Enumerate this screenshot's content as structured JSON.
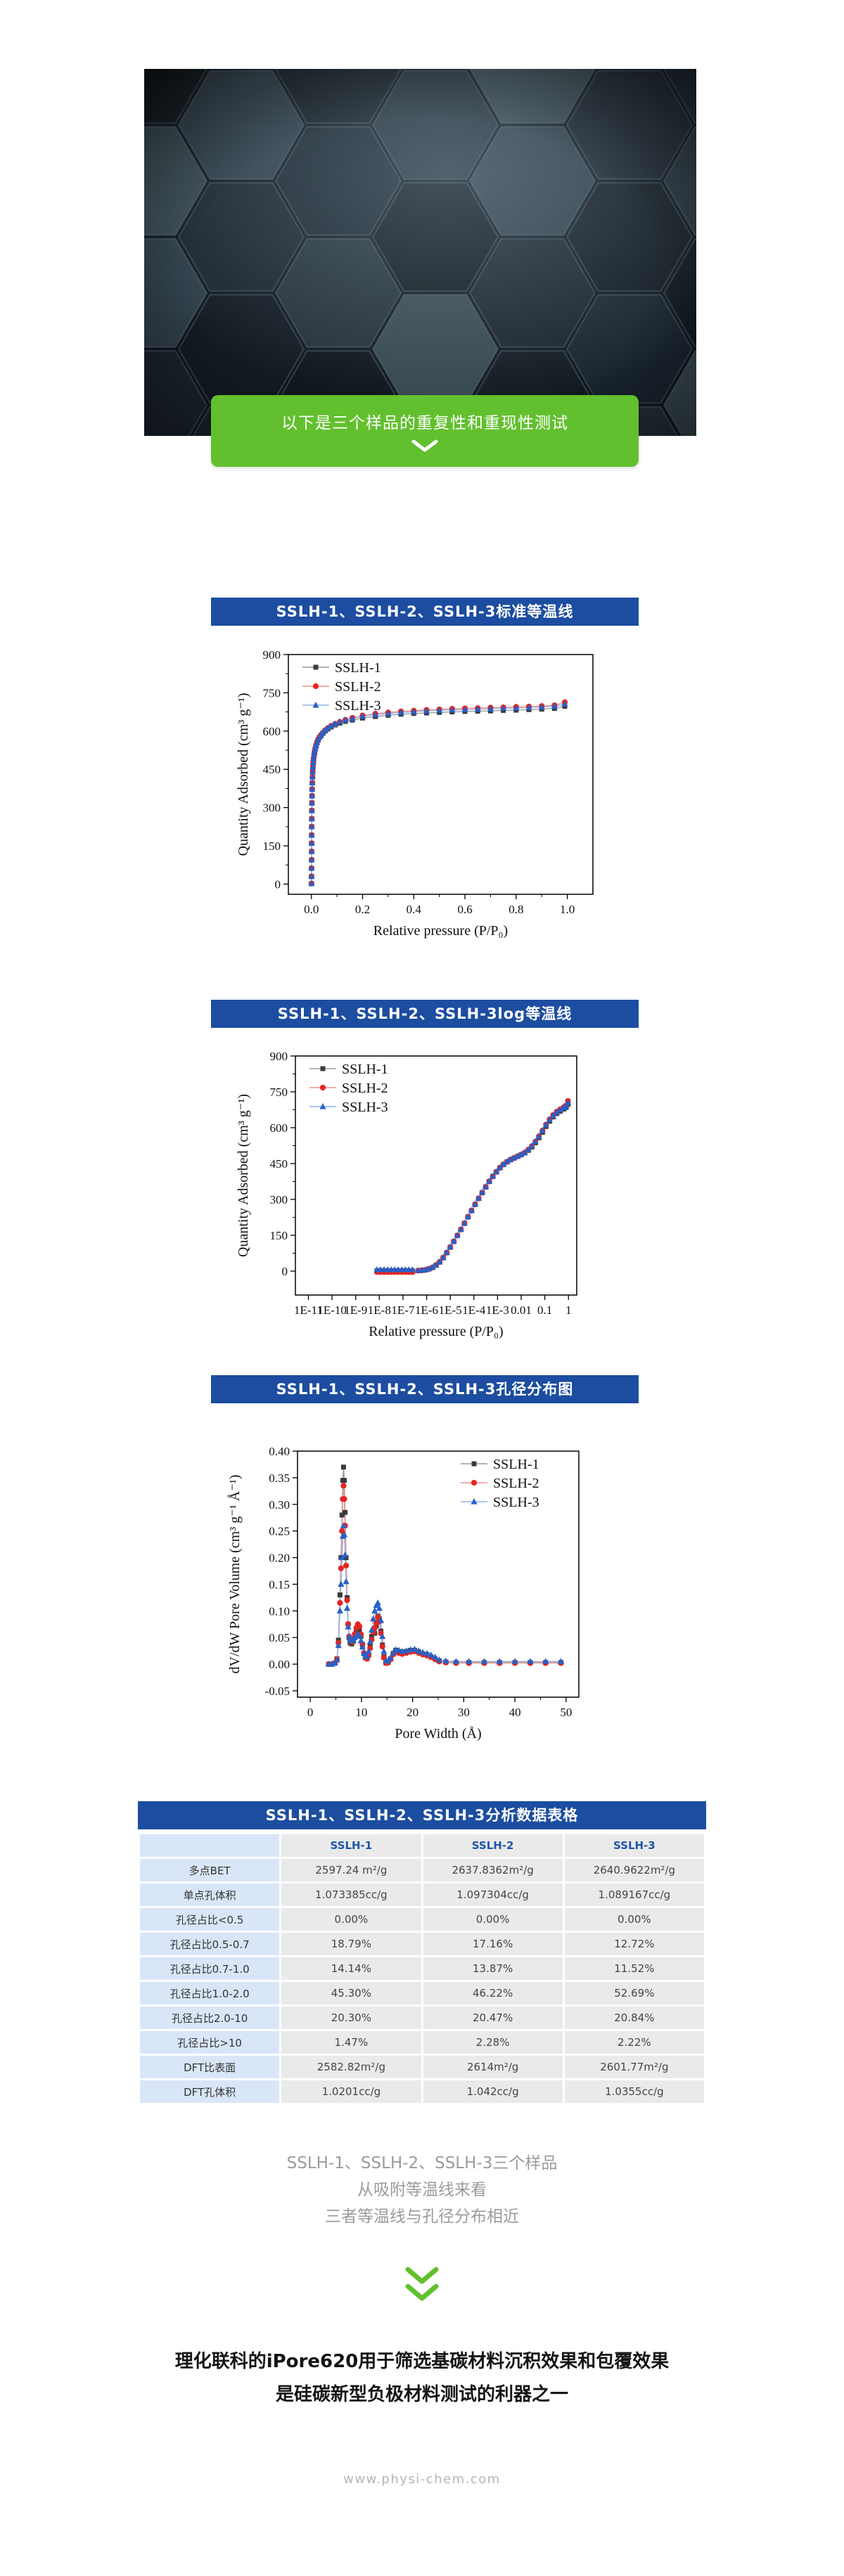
{
  "colors": {
    "accent_green": "#62c02e",
    "header_blue": "#1c4da0",
    "table_label_bg": "#d9e6f7",
    "table_cell_bg": "#eaeaea",
    "table_header_text": "#1d55a8"
  },
  "hero": {
    "palette": [
      "#0f161c",
      "#1a232c",
      "#243039",
      "#2e3d48",
      "#19242e",
      "#37474f",
      "#121a21"
    ],
    "highlight": "#9fb6c4"
  },
  "banner": {
    "title": "以下是三个样品的重复性和重现性测试"
  },
  "sections": [
    {
      "title": "SSLH-1、SSLH-2、SSLH-3标准等温线"
    },
    {
      "title": "SSLH-1、SSLH-2、SSLH-3log等温线"
    },
    {
      "title": "SSLH-1、SSLH-2、SSLH-3孔径分布图"
    },
    {
      "title": "SSLH-1、SSLH-2、SSLH-3分析数据表格"
    }
  ],
  "table": {
    "header": [
      "",
      "SSLH-1",
      "SSLH-2",
      "SSLH-3"
    ],
    "rows": [
      [
        "多点BET",
        "2597.24 m²/g",
        "2637.8362m²/g",
        "2640.9622m²/g"
      ],
      [
        "单点孔体积",
        "1.073385cc/g",
        "1.097304cc/g",
        "1.089167cc/g"
      ],
      [
        "孔径占比<0.5",
        "0.00%",
        "0.00%",
        "0.00%"
      ],
      [
        "孔径占比0.5-0.7",
        "18.79%",
        "17.16%",
        "12.72%"
      ],
      [
        "孔径占比0.7-1.0",
        "14.14%",
        "13.87%",
        "11.52%"
      ],
      [
        "孔径占比1.0-2.0",
        "45.30%",
        "46.22%",
        "52.69%"
      ],
      [
        "孔径占比2.0-10",
        "20.30%",
        "20.47%",
        "20.84%"
      ],
      [
        "孔径占比>10",
        "1.47%",
        "2.28%",
        "2.22%"
      ],
      [
        "DFT比表面",
        "2582.82m²/g",
        "2614m²/g",
        "2601.77m²/g"
      ],
      [
        "DFT孔体积",
        "1.0201cc/g",
        "1.042cc/g",
        "1.0355cc/g"
      ]
    ]
  },
  "summary": {
    "lines": [
      "SSLH-1、SSLH-2、SSLH-3三个样品",
      "从吸附等温线来看",
      "三者等温线与孔径分布相近"
    ]
  },
  "conclusion": {
    "lines": [
      "理化联科的iPore620用于筛选基碳材料沉积效果和包覆效果",
      "是硅碳新型负极材料测试的利器之一"
    ]
  },
  "footer": {
    "url": "www.physi-chem.com"
  },
  "chart_data": [
    {
      "type": "scatter",
      "title": "SSLH-1、SSLH-2、SSLH-3标准等温线",
      "xlabel": "Relative pressure (P/P₀)",
      "ylabel": "Quantity Adsorbed (cm³ g⁻¹)",
      "xscale": "linear",
      "xlim": [
        -0.09,
        1.1
      ],
      "ylim": [
        -40,
        900
      ],
      "grid": false,
      "legend_position": "top-left",
      "xticks": {
        "values": [
          0,
          0.2,
          0.4,
          0.6,
          0.8,
          1
        ],
        "labels": [
          "0.0",
          "0.2",
          "0.4",
          "0.6",
          "0.8",
          "1.0"
        ],
        "minor": [
          0.1,
          0.3,
          0.5,
          0.7,
          0.9
        ]
      },
      "yticks": {
        "values": [
          0,
          150,
          300,
          450,
          600,
          750,
          900
        ],
        "labels": [
          "0",
          "150",
          "300",
          "450",
          "600",
          "750",
          "900"
        ],
        "minor": [
          75,
          225,
          375,
          525,
          675,
          825
        ]
      },
      "x": [
        0.0004,
        0.0005,
        0.0006,
        0.0007,
        0.0008,
        0.0009,
        0.001,
        0.0012,
        0.0014,
        0.0017,
        0.002,
        0.0024,
        0.0029,
        0.0035,
        0.0042,
        0.005,
        0.006,
        0.0072,
        0.0086,
        0.0103,
        0.0124,
        0.0149,
        0.0179,
        0.0215,
        0.0258,
        0.031,
        0.0372,
        0.0446,
        0.0535,
        0.0642,
        0.077,
        0.0924,
        0.111,
        0.133,
        0.16,
        0.2,
        0.25,
        0.3,
        0.35,
        0.4,
        0.45,
        0.5,
        0.55,
        0.6,
        0.65,
        0.7,
        0.75,
        0.8,
        0.85,
        0.9,
        0.95,
        0.99
      ],
      "series": [
        {
          "name": "SSLH-1",
          "marker": "square",
          "marker_color": "#3a3a3a",
          "line_color": "#999999",
          "y": [
            2,
            30,
            62,
            95,
            128,
            160,
            192,
            225,
            256,
            288,
            318,
            346,
            372,
            397,
            420,
            441,
            460,
            477,
            492,
            506,
            519,
            531,
            543,
            554,
            565,
            575,
            582,
            591,
            600,
            608,
            616,
            624,
            631,
            638,
            643,
            651,
            657,
            662,
            666,
            669,
            671,
            673,
            675,
            677,
            678,
            679,
            681,
            682,
            684,
            686,
            689,
            697
          ]
        },
        {
          "name": "SSLH-2",
          "marker": "circle",
          "marker_color": "#e62420",
          "line_color": "#f0928d",
          "y": [
            2,
            30,
            62,
            95,
            128,
            160,
            192,
            225,
            256,
            288,
            318,
            346,
            372,
            397,
            420,
            441,
            460,
            477,
            492,
            506,
            519,
            531,
            543,
            554,
            565,
            575,
            585,
            594,
            603,
            612,
            620,
            628,
            636,
            644,
            652,
            661,
            668,
            673,
            677,
            680,
            683,
            685,
            687,
            689,
            690,
            692,
            693,
            695,
            696,
            698,
            701,
            713
          ]
        },
        {
          "name": "SSLH-3",
          "marker": "triangle",
          "marker_color": "#2760c8",
          "line_color": "#8fb2e8",
          "y": [
            2,
            30,
            62,
            95,
            128,
            160,
            192,
            225,
            256,
            288,
            318,
            346,
            372,
            397,
            420,
            441,
            460,
            477,
            492,
            506,
            519,
            531,
            543,
            554,
            565,
            575,
            585,
            594,
            603,
            612,
            620,
            628,
            636,
            644,
            649,
            658,
            664,
            669,
            673,
            676,
            679,
            681,
            683,
            684,
            686,
            687,
            689,
            690,
            692,
            694,
            697,
            706
          ]
        }
      ]
    },
    {
      "type": "scatter",
      "title": "SSLH-1、SSLH-2、SSLH-3log等温线",
      "xlabel": "Relative pressure (P/P₀)",
      "ylabel": "Quantity Adsorbed (cm³ g⁻¹)",
      "xscale": "log10",
      "xlim": [
        -11.55,
        0.35
      ],
      "ylim": [
        -100,
        900
      ],
      "grid": false,
      "legend_position": "top-left",
      "xticks": {
        "values": [
          -11,
          -10,
          -9,
          -8,
          -7,
          -6,
          -5,
          -4,
          -3,
          -2,
          -1,
          0
        ],
        "labels": [
          "1E-11",
          "1E-10",
          "1E-9",
          "1E-8",
          "1E-7",
          "1E-6",
          "1E-5",
          "1E-4",
          "1E-3",
          "0.01",
          "0.1",
          "1"
        ],
        "minor": []
      },
      "yticks": {
        "values": [
          0,
          150,
          300,
          450,
          600,
          750,
          900
        ],
        "labels": [
          "0",
          "150",
          "300",
          "450",
          "600",
          "750",
          "900"
        ],
        "minor": [
          75,
          225,
          375,
          525,
          675,
          825
        ]
      },
      "x": [
        -8.1,
        -7.95,
        -7.8,
        -7.65,
        -7.5,
        -7.35,
        -7.2,
        -7.05,
        -6.9,
        -6.75,
        -6.6,
        -6.35,
        -6.2,
        -6.05,
        -5.9,
        -5.75,
        -5.6,
        -5.45,
        -5.3,
        -5.15,
        -5.0,
        -4.85,
        -4.7,
        -4.55,
        -4.4,
        -4.25,
        -4.1,
        -3.95,
        -3.8,
        -3.65,
        -3.5,
        -3.35,
        -3.2,
        -3.05,
        -2.9,
        -2.75,
        -2.6,
        -2.45,
        -2.3,
        -2.15,
        -2.0,
        -1.85,
        -1.7,
        -1.55,
        -1.4,
        -1.25,
        -1.1,
        -0.95,
        -0.8,
        -0.65,
        -0.5,
        -0.35,
        -0.2,
        -0.1,
        -0.02
      ],
      "series": [
        {
          "name": "SSLH-1",
          "marker": "square",
          "marker_color": "#3a3a3a",
          "line_color": "#999999",
          "y": [
            1,
            1,
            1,
            1,
            1,
            1,
            1,
            1,
            1,
            1,
            1,
            2,
            3,
            5,
            9,
            15,
            25,
            38,
            56,
            77,
            100,
            124,
            149,
            174,
            200,
            227,
            253,
            279,
            304,
            328,
            352,
            375,
            396,
            415,
            432,
            446,
            457,
            466,
            473,
            480,
            487,
            494,
            505,
            519,
            537,
            558,
            581,
            605,
            627,
            645,
            659,
            669,
            678,
            685,
            697
          ]
        },
        {
          "name": "SSLH-2",
          "marker": "circle",
          "marker_color": "#e62420",
          "line_color": "#f0928d",
          "y": [
            -4,
            -4,
            -4,
            -4,
            -4,
            -4,
            -4,
            -4,
            -4,
            -4,
            -4,
            2,
            3,
            5,
            9,
            15,
            25,
            38,
            56,
            77,
            100,
            124,
            149,
            174,
            200,
            227,
            253,
            279,
            304,
            328,
            352,
            375,
            396,
            415,
            432,
            446,
            457,
            466,
            473,
            480,
            487,
            496,
            508,
            523,
            542,
            564,
            588,
            613,
            635,
            653,
            667,
            677,
            686,
            693,
            712
          ]
        },
        {
          "name": "SSLH-3",
          "marker": "triangle",
          "marker_color": "#2760c8",
          "line_color": "#8fb2e8",
          "y": [
            6,
            6,
            6,
            6,
            6,
            6,
            6,
            6,
            6,
            6,
            6,
            3,
            4,
            6,
            10,
            16,
            26,
            39,
            57,
            78,
            101,
            125,
            150,
            175,
            201,
            228,
            254,
            280,
            305,
            329,
            353,
            376,
            397,
            416,
            433,
            447,
            458,
            467,
            474,
            481,
            488,
            496,
            508,
            523,
            542,
            564,
            588,
            612,
            633,
            650,
            664,
            674,
            683,
            690,
            705
          ]
        }
      ]
    },
    {
      "type": "scatter",
      "title": "SSLH-1、SSLH-2、SSLH-3孔径分布图",
      "xlabel": "Pore Width (Å)",
      "ylabel": "dV/dW Pore Volume (cm³ g⁻¹ Å⁻¹)",
      "xscale": "linear",
      "xlim": [
        -2.5,
        52.5
      ],
      "ylim": [
        -0.062,
        0.4
      ],
      "grid": false,
      "legend_position": "top-right",
      "xticks": {
        "values": [
          0,
          10,
          20,
          30,
          40,
          50
        ],
        "labels": [
          "0",
          "10",
          "20",
          "30",
          "40",
          "50"
        ],
        "minor": [
          5,
          15,
          25,
          35,
          45
        ]
      },
      "yticks": {
        "values": [
          -0.05,
          0,
          0.05,
          0.1,
          0.15,
          0.2,
          0.25,
          0.3,
          0.35,
          0.4
        ],
        "labels": [
          "-0.05",
          "0.00",
          "0.05",
          "0.10",
          "0.15",
          "0.20",
          "0.25",
          "0.30",
          "0.35",
          "0.40"
        ],
        "minor": []
      },
      "x": [
        3.6,
        4.2,
        4.8,
        5.2,
        5.5,
        5.8,
        6.0,
        6.2,
        6.35,
        6.5,
        6.65,
        6.8,
        7.0,
        7.2,
        7.4,
        7.6,
        7.8,
        8.1,
        8.4,
        8.7,
        9.0,
        9.3,
        9.6,
        9.9,
        10.2,
        10.5,
        10.8,
        11.1,
        11.4,
        11.7,
        12.0,
        12.3,
        12.6,
        12.9,
        13.2,
        13.5,
        13.8,
        14.1,
        14.4,
        14.8,
        15.2,
        15.7,
        16.2,
        16.7,
        17.3,
        18.0,
        18.8,
        19.6,
        20.4,
        21.2,
        22.0,
        22.8,
        23.6,
        24.4,
        25.2,
        26.5,
        28.5,
        31,
        34,
        37,
        40,
        43,
        46,
        49
      ],
      "series": [
        {
          "name": "SSLH-1",
          "marker": "square",
          "marker_color": "#3a3a3a",
          "line_color": "#999999",
          "y": [
            0,
            0,
            0.002,
            0.01,
            0.045,
            0.13,
            0.2,
            0.28,
            0.345,
            0.37,
            0.345,
            0.285,
            0.2,
            0.125,
            0.075,
            0.05,
            0.04,
            0.038,
            0.043,
            0.052,
            0.062,
            0.068,
            0.065,
            0.052,
            0.036,
            0.02,
            0.012,
            0.011,
            0.018,
            0.034,
            0.052,
            0.06,
            0.058,
            0.072,
            0.09,
            0.085,
            0.062,
            0.036,
            0.014,
            0.002,
            0.003,
            0.01,
            0.02,
            0.026,
            0.024,
            0.022,
            0.024,
            0.026,
            0.026,
            0.023,
            0.019,
            0.018,
            0.014,
            0.01,
            0.006,
            0.004,
            0.003,
            0.003,
            0.003,
            0.003,
            0.003,
            0.003,
            0.003,
            0.003
          ]
        },
        {
          "name": "SSLH-2",
          "marker": "circle",
          "marker_color": "#e62420",
          "line_color": "#f0928d",
          "y": [
            0,
            0,
            0.002,
            0.009,
            0.04,
            0.115,
            0.18,
            0.25,
            0.31,
            0.335,
            0.31,
            0.26,
            0.185,
            0.12,
            0.075,
            0.052,
            0.044,
            0.042,
            0.047,
            0.057,
            0.068,
            0.075,
            0.071,
            0.056,
            0.038,
            0.021,
            0.012,
            0.01,
            0.016,
            0.03,
            0.046,
            0.06,
            0.068,
            0.078,
            0.088,
            0.08,
            0.058,
            0.033,
            0.012,
            0.002,
            0.003,
            0.009,
            0.018,
            0.023,
            0.021,
            0.019,
            0.021,
            0.023,
            0.024,
            0.021,
            0.018,
            0.016,
            0.013,
            0.009,
            0.005,
            0.003,
            0.002,
            0.002,
            0.002,
            0.002,
            0.002,
            0.002,
            0.002,
            0.002
          ]
        },
        {
          "name": "SSLH-3",
          "marker": "triangle",
          "marker_color": "#2760c8",
          "line_color": "#8fb2e8",
          "y": [
            0,
            0,
            0.002,
            0.008,
            0.035,
            0.1,
            0.15,
            0.2,
            0.24,
            0.26,
            0.243,
            0.205,
            0.155,
            0.105,
            0.07,
            0.052,
            0.045,
            0.044,
            0.046,
            0.05,
            0.054,
            0.056,
            0.053,
            0.044,
            0.032,
            0.02,
            0.014,
            0.015,
            0.024,
            0.042,
            0.064,
            0.085,
            0.1,
            0.11,
            0.115,
            0.105,
            0.082,
            0.052,
            0.024,
            0.007,
            0.006,
            0.012,
            0.021,
            0.027,
            0.026,
            0.024,
            0.025,
            0.027,
            0.028,
            0.025,
            0.022,
            0.02,
            0.017,
            0.013,
            0.008,
            0.006,
            0.005,
            0.005,
            0.005,
            0.005,
            0.005,
            0.005,
            0.005,
            0.005
          ]
        }
      ]
    }
  ]
}
